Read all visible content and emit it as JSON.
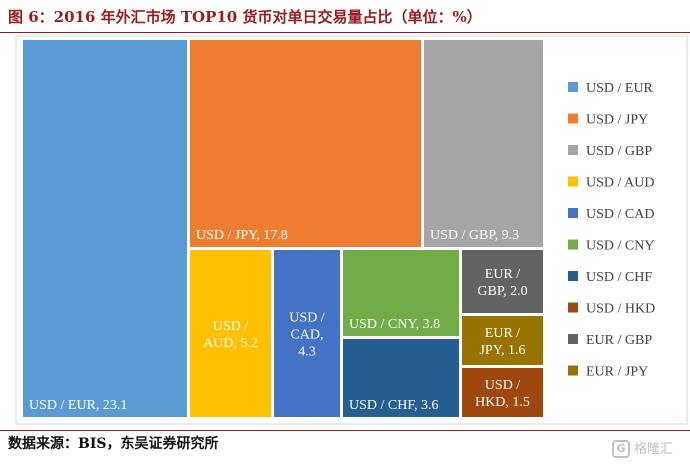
{
  "header": {
    "title": "图 6：2016 年外汇市场 TOP10 货币对单日交易量占比（单位：%）"
  },
  "footer": {
    "source": "数据来源：BIS，东吴证券研究所"
  },
  "watermark": {
    "icon": "G",
    "text": "格隆汇"
  },
  "chart_data": {
    "type": "treemap",
    "title": "",
    "legend_position": "right",
    "items": [
      {
        "name": "USD / EUR",
        "value": 23.1,
        "label_lines": [
          "USD / EUR, 23.1"
        ],
        "color": "#5b9bd5"
      },
      {
        "name": "USD / JPY",
        "value": 17.8,
        "label_lines": [
          "USD / JPY, 17.8"
        ],
        "color": "#ed7d31"
      },
      {
        "name": "USD / GBP",
        "value": 9.3,
        "label_lines": [
          "USD / GBP, 9.3"
        ],
        "color": "#a5a5a5"
      },
      {
        "name": "USD / AUD",
        "value": 5.2,
        "label_lines": [
          "USD /",
          "AUD, 5.2"
        ],
        "color": "#ffc000"
      },
      {
        "name": "USD / CAD",
        "value": 4.3,
        "label_lines": [
          "USD /",
          "CAD,",
          "4.3"
        ],
        "color": "#4472c4"
      },
      {
        "name": "USD / CNY",
        "value": 3.8,
        "label_lines": [
          "USD / CNY, 3.8"
        ],
        "color": "#70ad47"
      },
      {
        "name": "USD / CHF",
        "value": 3.6,
        "label_lines": [
          "USD / CHF, 3.6"
        ],
        "color": "#255e91"
      },
      {
        "name": "USD / HKD",
        "value": 1.5,
        "label_lines": [
          "USD /",
          "HKD, 1.5"
        ],
        "color": "#9e480e"
      },
      {
        "name": "EUR / GBP",
        "value": 2.0,
        "label_lines": [
          "EUR /",
          "GBP, 2.0"
        ],
        "color": "#636363"
      },
      {
        "name": "EUR / JPY",
        "value": 1.6,
        "label_lines": [
          "EUR /",
          "JPY, 1.6"
        ],
        "color": "#997300"
      }
    ]
  }
}
